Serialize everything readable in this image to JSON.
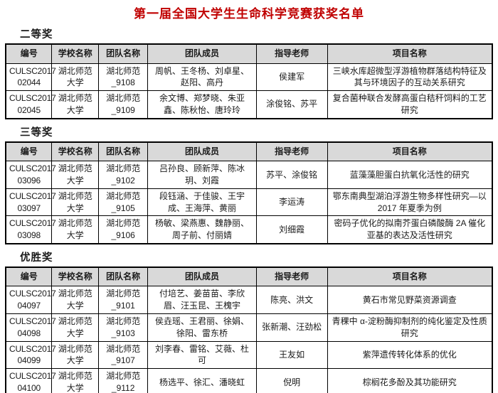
{
  "page": {
    "title": "第一届全国大学生生命科学竞赛获奖名单",
    "title_color": "#c00000",
    "header_bg": "#d9d9d9"
  },
  "columns": [
    "编号",
    "学校名称",
    "团队名称",
    "团队成员",
    "指导老师",
    "项目名称"
  ],
  "sections": [
    {
      "label": "二等奖",
      "rows": [
        {
          "id": "CULSC2017\n02044",
          "school": "湖北师范大学",
          "team": "湖北师范_9108",
          "members": "周帆、王冬杨、刘卓星、赵阳、高丹",
          "advisors": "侯建军",
          "project": "三峡水库超微型浮游植物群落结构特征及其与环境因子的互动关系研究"
        },
        {
          "id": "CULSC2017\n02045",
          "school": "湖北师范大学",
          "team": "湖北师范_9109",
          "members": "余文博、郑梦晓、朱亚鑫、陈秋怡、唐玲玲",
          "advisors": "涂俊铭、苏平",
          "project": "复合菌种联合发酵高蛋白秸秆饲料的工艺研究"
        }
      ]
    },
    {
      "label": "三等奖",
      "rows": [
        {
          "id": "CULSC2017\n03096",
          "school": "湖北师范大学",
          "team": "湖北师范_9102",
          "members": "吕孙良、顾新萍、陈冰玥、刘霞",
          "advisors": "苏平、涂俊铭",
          "project": "蓝藻藻胆蛋白抗氧化活性的研究"
        },
        {
          "id": "CULSC2017\n03097",
          "school": "湖北师范大学",
          "team": "湖北师范_9105",
          "members": "段钰涵、于佳骏、王宇成、王海萍、黄丽",
          "advisors": "李运涛",
          "project": "鄂东南典型湖泊浮游生物多样性研究—以 2017 年夏季为例"
        },
        {
          "id": "CULSC2017\n03098",
          "school": "湖北师范大学",
          "team": "湖北师范_9106",
          "members": "杨敏、梁燕惠、魏静丽、周子前、付丽婧",
          "advisors": "刘细霞",
          "project": "密码子优化的拟南芥蛋白磷酸酶 2A 催化亚基的表达及活性研究"
        }
      ]
    },
    {
      "label": "优胜奖",
      "rows": [
        {
          "id": "CULSC2017\n04097",
          "school": "湖北师范大学",
          "team": "湖北师范_9101",
          "members": "付培艺、姜苗苗、李欣眉、汪玉昆、王槐宇",
          "advisors": "陈亮、洪文",
          "project": "黄石市常见野菜资源调查"
        },
        {
          "id": "CULSC2017\n04098",
          "school": "湖北师范大学",
          "team": "湖北师范_9103",
          "members": "侯垚瑶、王君丽、徐娟、徐阳、雷东桥",
          "advisors": "张新潮、汪劲松",
          "project": "青稞中 α-淀粉酶抑制剂的纯化鉴定及性质研究"
        },
        {
          "id": "CULSC2017\n04099",
          "school": "湖北师范大学",
          "team": "湖北师范_9107",
          "members": "刘李春、雷铭、艾薇、杜可",
          "advisors": "王友如",
          "project": "紫萍遗传转化体系的优化"
        },
        {
          "id": "CULSC2017\n04100",
          "school": "湖北师范大学",
          "team": "湖北师范_9112",
          "members": "杨选平、徐汇、潘晓虹",
          "advisors": "倪明",
          "project": "棕榈花多酚及其功能研究"
        }
      ]
    }
  ]
}
